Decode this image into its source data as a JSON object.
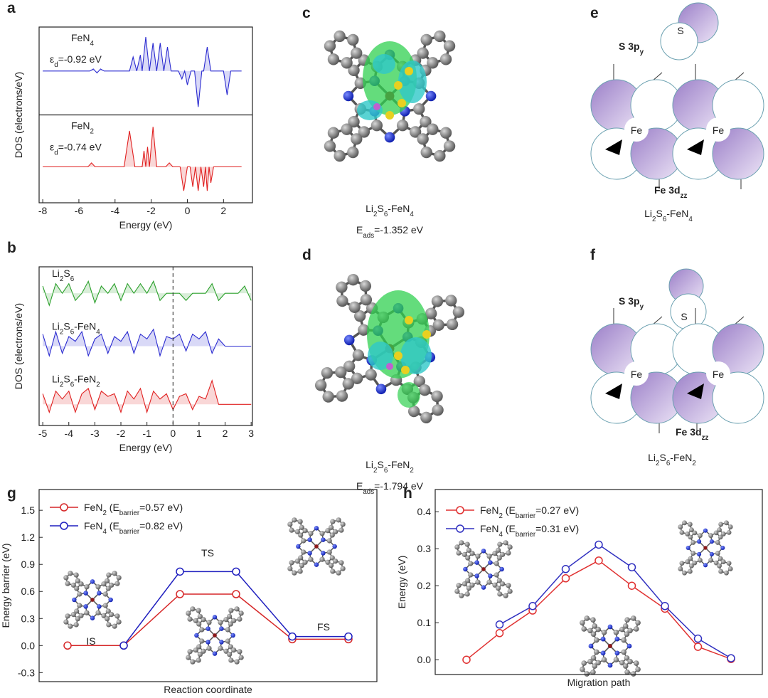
{
  "chart_data": [
    {
      "type": "dos",
      "label": "a",
      "xlabel": "Energy (eV)",
      "ylabel": "DOS (electrons/eV)",
      "xlim": [
        -8.2,
        3.6
      ],
      "xticks": [
        -8,
        -6,
        -4,
        -2,
        0,
        2
      ],
      "row_dividers": true,
      "series": [
        {
          "name": [
            "FeN",
            "4"
          ],
          "annotation": [
            "ε",
            "d",
            "=-0.92 eV"
          ],
          "color": "#2b2bd0",
          "ylim": [
            -1.1,
            1.1
          ],
          "x": [
            -8,
            -5.4,
            -5.2,
            -5.0,
            -4.8,
            -4.6,
            -3.2,
            -3.0,
            -2.8,
            -2.6,
            -2.5,
            -2.3,
            -2.1,
            -1.9,
            -1.7,
            -1.5,
            -1.3,
            -1.1,
            -0.9,
            -0.5,
            -0.3,
            -0.15,
            0.0,
            0.2,
            0.4,
            0.6,
            0.8,
            0.9,
            1.1,
            1.3,
            2.0,
            2.2,
            2.4,
            3
          ],
          "values": [
            0,
            0,
            0.05,
            -0.05,
            0.05,
            0,
            0,
            0.35,
            0,
            0.4,
            0,
            0.85,
            0,
            0.7,
            0,
            0.7,
            0,
            0.6,
            0,
            0,
            -0.2,
            0,
            -0.35,
            0,
            0,
            -0.9,
            0,
            0,
            0.6,
            0,
            0,
            -0.6,
            0,
            0
          ]
        },
        {
          "name": [
            "FeN",
            "2"
          ],
          "annotation": [
            "ε",
            "d",
            "=-0.74 eV"
          ],
          "color": "#e02020",
          "ylim": [
            -0.9,
            1.3
          ],
          "x": [
            -8,
            -5.5,
            -5.3,
            -5.1,
            -3.5,
            -3.2,
            -2.9,
            -2.5,
            -2.4,
            -2.3,
            -2.2,
            -2.1,
            -1.9,
            -1.7,
            -1.2,
            -1.0,
            -0.8,
            -0.4,
            -0.2,
            0.0,
            0.15,
            0.3,
            0.45,
            0.6,
            0.75,
            0.9,
            1.0,
            1.1,
            1.2,
            1.3,
            1.45,
            3
          ],
          "values": [
            0,
            0,
            0.1,
            0,
            0,
            0.9,
            0,
            0,
            0.4,
            0,
            0.5,
            0,
            1.0,
            0,
            0,
            0.1,
            0,
            0,
            -0.6,
            0,
            0,
            -0.5,
            0,
            -0.6,
            0,
            -0.5,
            0,
            -0.6,
            0,
            -0.4,
            0,
            0
          ]
        }
      ]
    },
    {
      "type": "dos",
      "label": "b",
      "xlabel": "Energy (eV)",
      "ylabel": "DOS (electrons/eV)",
      "xlim": [
        -5.14,
        3.05
      ],
      "xticks": [
        -5,
        -4,
        -3,
        -2,
        -1,
        0,
        1,
        2,
        3
      ],
      "vline": 0,
      "x": [
        -5,
        -4.75,
        -4.5,
        -4.25,
        -4,
        -3.75,
        -3.5,
        -3.25,
        -3,
        -2.75,
        -2.5,
        -2.25,
        -2,
        -1.75,
        -1.5,
        -1.25,
        -1,
        -0.75,
        -0.5,
        -0.25,
        0,
        0.25,
        0.5,
        0.75,
        1,
        1.25,
        1.5,
        1.75,
        2,
        2.25,
        2.5,
        2.75,
        3
      ],
      "series": [
        {
          "name": [
            "Li",
            "2",
            "S",
            "6"
          ],
          "color": "#2ca02c",
          "ylim": [
            -1.1,
            1.1
          ],
          "values": [
            0.3,
            -0.5,
            0.4,
            0,
            0.4,
            -0.3,
            0,
            0.5,
            -0.4,
            0.3,
            0,
            0.4,
            -0.3,
            0.4,
            0,
            0.4,
            0,
            0.5,
            -0.3,
            0,
            0,
            0,
            -0.3,
            0,
            0,
            0,
            0.4,
            -0.3,
            0,
            0,
            0,
            0.3,
            -0.3
          ]
        },
        {
          "name": [
            "Li",
            "2",
            "S",
            "6",
            "-FeN",
            "4"
          ],
          "color": "#2b2bd0",
          "ylim": [
            -1.1,
            1.1
          ],
          "values": [
            0.5,
            -0.4,
            0.6,
            -0.3,
            0.4,
            0.2,
            0.6,
            -0.4,
            0.3,
            0.5,
            -0.3,
            0.4,
            0.2,
            0.6,
            -0.3,
            0.5,
            0.3,
            0.7,
            -0.4,
            0.4,
            0.3,
            0.5,
            -0.2,
            0.5,
            0.3,
            0.6,
            -0.3,
            0.3,
            0,
            0,
            0,
            0,
            0
          ]
        },
        {
          "name": [
            "Li",
            "2",
            "S",
            "6",
            "-FeN",
            "2"
          ],
          "color": "#e02020",
          "ylim": [
            -0.8,
            1.2
          ],
          "values": [
            0.4,
            -0.3,
            0.5,
            0.2,
            0.5,
            -0.3,
            0.4,
            0.6,
            -0.2,
            0.5,
            0.3,
            0.4,
            -0.3,
            0.5,
            0.2,
            0.6,
            -0.3,
            0.5,
            0.2,
            0.4,
            -0.2,
            0.3,
            0.4,
            -0.2,
            0.3,
            0.2,
            0.9,
            0,
            0,
            0,
            0,
            0,
            0
          ]
        }
      ]
    },
    {
      "type": "line",
      "label": "g",
      "xlabel": "Reaction coordinate",
      "ylabel": "Energy barrier (eV)",
      "categories": [
        null,
        null,
        null,
        null,
        null,
        null
      ],
      "ylim": [
        -0.4,
        1.73
      ],
      "yticks": [
        -0.3,
        {
          "value": 0,
          "label": "0.0"
        },
        0.3,
        0.6,
        0.9,
        1.2,
        1.5
      ],
      "legend": "upper left",
      "annotations": [
        "IS",
        "TS",
        "FS"
      ],
      "series": [
        {
          "name": [
            "FeN",
            "2",
            " (E",
            "barrier",
            "=0.57 eV)"
          ],
          "color": "#d62728",
          "values": [
            0,
            0,
            0.57,
            0.57,
            0.07,
            0.07
          ]
        },
        {
          "name": [
            "FeN",
            "4",
            " (E",
            "barrier",
            "=0.82 eV)"
          ],
          "color": "#1f1fbf",
          "values": [
            null,
            0,
            0.82,
            0.82,
            0.1,
            0.1
          ]
        }
      ]
    },
    {
      "type": "line",
      "label": "h",
      "xlabel": "Migration path",
      "ylabel": "Energy (eV)",
      "categories": [
        null,
        null,
        null,
        null,
        null,
        null,
        null,
        null,
        null
      ],
      "ylim": [
        -0.04,
        0.46
      ],
      "yticks": [
        {
          "value": 0,
          "label": "0.0"
        },
        0.1,
        0.2,
        0.3,
        0.4
      ],
      "legend": "upper left",
      "series": [
        {
          "name": [
            "FeN",
            "2",
            " (E",
            "barrier",
            "=0.27 eV)"
          ],
          "color": "#e03030",
          "values": [
            0,
            0.072,
            0.133,
            0.22,
            0.268,
            0.2,
            0.138,
            0.035,
            0.002
          ]
        },
        {
          "name": [
            "FeN",
            "4",
            " (E",
            "barrier",
            "=0.31 eV)"
          ],
          "color": "#3030c0",
          "values": [
            null,
            0.095,
            0.145,
            0.245,
            0.311,
            0.25,
            0.145,
            0.057,
            0.004
          ]
        }
      ]
    }
  ],
  "diagrams": [
    {
      "label": "c",
      "caption": [
        "Li",
        "2",
        "S",
        "6",
        "-FeN",
        "4"
      ],
      "energy": [
        "E",
        "ads",
        "=-1.352 eV"
      ]
    },
    {
      "label": "d",
      "caption": [
        "Li",
        "2",
        "S",
        "6",
        "-FeN",
        "2"
      ],
      "energy": [
        "E",
        "ads",
        "=-1.794 eV"
      ]
    }
  ],
  "orbitals": [
    {
      "label": "e",
      "s_orbital": [
        "S 3p",
        "y"
      ],
      "s_atom": "S",
      "fe_atom": "Fe",
      "fe_orbital": [
        "Fe 3d",
        "zz"
      ],
      "caption": [
        "Li",
        "2",
        "S",
        "6",
        "-FeN",
        "4"
      ]
    },
    {
      "label": "f",
      "s_orbital": [
        "S 3p",
        "y"
      ],
      "s_atom": "S",
      "fe_atom": "Fe",
      "fe_orbital": [
        "Fe 3d",
        "zz"
      ],
      "caption": [
        "Li",
        "2",
        "S",
        "6",
        "-FeN",
        "2"
      ]
    }
  ]
}
